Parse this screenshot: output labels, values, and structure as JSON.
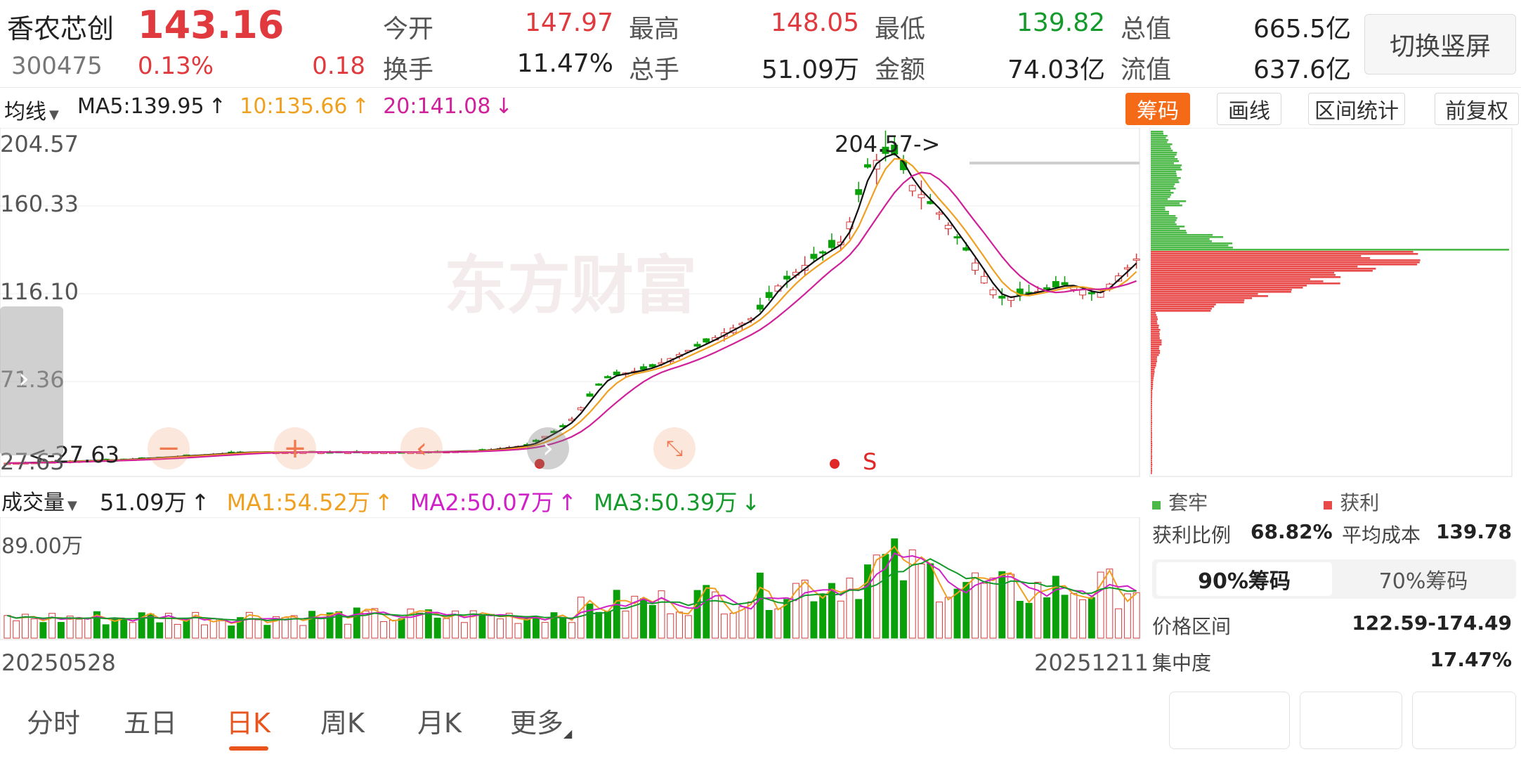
{
  "quote": {
    "name": "香农芯创",
    "price": "143.16",
    "code": "300475",
    "change_pct": "0.13%",
    "change": "0.18",
    "switch_label": "切换竖屏",
    "stats": [
      {
        "label": "今开",
        "value": "147.97",
        "color": "red"
      },
      {
        "label": "最高",
        "value": "148.05",
        "color": "red"
      },
      {
        "label": "最低",
        "value": "139.82",
        "color": "green"
      },
      {
        "label": "总值",
        "value": "665.5亿",
        "color": "dark"
      },
      {
        "label": "换手",
        "value": "11.47%",
        "color": "dark"
      },
      {
        "label": "总手",
        "value": "51.09万",
        "color": "dark"
      },
      {
        "label": "金额",
        "value": "74.03亿",
        "color": "dark"
      },
      {
        "label": "流值",
        "value": "637.6亿",
        "color": "dark"
      }
    ]
  },
  "ma_bar": {
    "selector": "均线",
    "ma5": "MA5:139.95",
    "ma10": "10:135.66",
    "ma20": "20:141.08",
    "arrow_up": "↑",
    "arrow_down": "↓"
  },
  "toolbar": {
    "chips": "筹码",
    "draw": "画线",
    "interval": "区间统计",
    "adjust": "前复权"
  },
  "price_chart": {
    "y_labels": [
      "204.57",
      "160.33",
      "116.10",
      "71.36",
      "27.63"
    ],
    "high_annotation": "204.57->",
    "low_annotation": "<-27.63",
    "watermark": "东方财富",
    "signal_s": "S",
    "controls": [
      "−",
      "+",
      "‹",
      "›"
    ],
    "colors": {
      "up": "#d23b3b",
      "down": "#0aa00a",
      "ma5": "#111111",
      "ma10": "#f0a020",
      "ma20": "#d0209a"
    }
  },
  "volume_bar": {
    "selector": "成交量",
    "value": "51.09万",
    "ma1": "MA1:54.52万",
    "ma2": "MA2:50.07万",
    "ma3": "MA3:50.39万",
    "max_label": "89.00万"
  },
  "dates": {
    "start": "20250528",
    "end": "20251211"
  },
  "chips_panel": {
    "legend_trapped": "套牢",
    "legend_profit": "获利",
    "profit_ratio_label": "获利比例",
    "profit_ratio": "68.82%",
    "avg_cost_label": "平均成本",
    "avg_cost": "139.78",
    "tab_90": "90%筹码",
    "tab_70": "70%筹码",
    "range_label": "价格区间",
    "range_value": "122.59-174.49",
    "concentration_label": "集中度",
    "concentration_value": "17.47%"
  },
  "tabs": [
    "分时",
    "五日",
    "日K",
    "周K",
    "月K",
    "更多"
  ],
  "active_tab": "日K"
}
